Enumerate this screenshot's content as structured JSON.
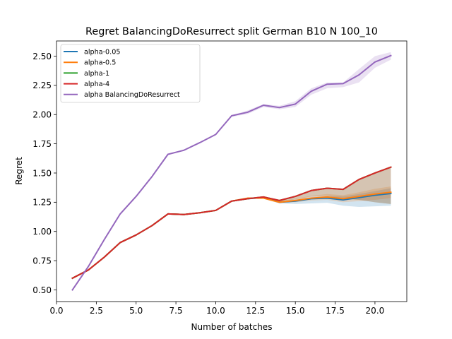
{
  "chart_data": {
    "type": "line",
    "title": "Regret BalancingDoResurrect split German B10 N 100_10",
    "xlabel": "Number of batches",
    "ylabel": "Regret",
    "xlim": [
      0.0,
      22.0
    ],
    "ylim": [
      0.4,
      2.63
    ],
    "xticks": [
      "0.0",
      "2.5",
      "5.0",
      "7.5",
      "10.0",
      "12.5",
      "15.0",
      "17.5",
      "20.0"
    ],
    "xtick_values": [
      0,
      2.5,
      5,
      7.5,
      10,
      12.5,
      15,
      17.5,
      20
    ],
    "yticks": [
      "0.50",
      "0.75",
      "1.00",
      "1.25",
      "1.50",
      "1.75",
      "2.00",
      "2.25",
      "2.50"
    ],
    "ytick_values": [
      0.5,
      0.75,
      1.0,
      1.25,
      1.5,
      1.75,
      2.0,
      2.25,
      2.5
    ],
    "grid": false,
    "legend_position": "top-left",
    "x": [
      1,
      2,
      3,
      4,
      5,
      6,
      7,
      8,
      9,
      10,
      11,
      12,
      13,
      14,
      15,
      16,
      17,
      18,
      19,
      20,
      21
    ],
    "series": [
      {
        "name": "alpha-0.05",
        "color": "#1f77b4",
        "values": [
          0.6,
          0.67,
          0.78,
          0.905,
          0.97,
          1.05,
          1.15,
          1.145,
          1.16,
          1.18,
          1.26,
          1.28,
          1.29,
          1.25,
          1.26,
          1.28,
          1.285,
          1.27,
          1.29,
          1.31,
          1.325
        ],
        "lower": [
          0.6,
          0.67,
          0.78,
          0.905,
          0.97,
          1.05,
          1.15,
          1.145,
          1.16,
          1.18,
          1.26,
          1.28,
          1.28,
          1.24,
          1.235,
          1.24,
          1.245,
          1.22,
          1.21,
          1.215,
          1.22
        ],
        "upper": [
          0.6,
          0.67,
          0.78,
          0.905,
          0.97,
          1.05,
          1.15,
          1.145,
          1.16,
          1.18,
          1.26,
          1.28,
          1.29,
          1.26,
          1.275,
          1.3,
          1.305,
          1.3,
          1.32,
          1.345,
          1.37
        ]
      },
      {
        "name": "alpha-0.5",
        "color": "#ff7f0e",
        "values": [
          0.6,
          0.67,
          0.78,
          0.905,
          0.97,
          1.05,
          1.15,
          1.145,
          1.16,
          1.18,
          1.26,
          1.285,
          1.285,
          1.25,
          1.265,
          1.285,
          1.295,
          1.28,
          1.3,
          1.32,
          1.335
        ],
        "lower": [
          0.6,
          0.67,
          0.78,
          0.905,
          0.97,
          1.05,
          1.15,
          1.145,
          1.16,
          1.18,
          1.26,
          1.28,
          1.28,
          1.245,
          1.25,
          1.265,
          1.27,
          1.25,
          1.26,
          1.27,
          1.285
        ],
        "upper": [
          0.6,
          0.67,
          0.78,
          0.905,
          0.97,
          1.05,
          1.15,
          1.145,
          1.16,
          1.18,
          1.26,
          1.29,
          1.295,
          1.26,
          1.28,
          1.305,
          1.32,
          1.31,
          1.335,
          1.365,
          1.385
        ]
      },
      {
        "name": "alpha-1",
        "color": "#2ca02c",
        "values": [
          0.6,
          0.67,
          0.78,
          0.905,
          0.97,
          1.05,
          1.15,
          1.145,
          1.16,
          1.18,
          1.26,
          1.28,
          1.295,
          1.265,
          1.3,
          1.35,
          1.37,
          1.36,
          1.445,
          1.5,
          1.55
        ],
        "lower": [
          0.6,
          0.67,
          0.78,
          0.905,
          0.97,
          1.05,
          1.15,
          1.145,
          1.16,
          1.18,
          1.26,
          1.28,
          1.29,
          1.255,
          1.275,
          1.3,
          1.305,
          1.28,
          1.27,
          1.25,
          1.235
        ],
        "upper": [
          0.6,
          0.67,
          0.78,
          0.905,
          0.97,
          1.05,
          1.15,
          1.145,
          1.16,
          1.18,
          1.26,
          1.28,
          1.3,
          1.27,
          1.305,
          1.35,
          1.37,
          1.36,
          1.445,
          1.5,
          1.55
        ]
      },
      {
        "name": "alpha-4",
        "color": "#d62728",
        "values": [
          0.6,
          0.67,
          0.78,
          0.905,
          0.97,
          1.05,
          1.15,
          1.145,
          1.16,
          1.18,
          1.26,
          1.28,
          1.295,
          1.265,
          1.3,
          1.35,
          1.37,
          1.36,
          1.445,
          1.5,
          1.55
        ],
        "lower": [
          0.6,
          0.67,
          0.78,
          0.905,
          0.97,
          1.05,
          1.15,
          1.145,
          1.16,
          1.18,
          1.26,
          1.28,
          1.29,
          1.255,
          1.275,
          1.3,
          1.305,
          1.28,
          1.27,
          1.25,
          1.235
        ],
        "upper": [
          0.6,
          0.67,
          0.78,
          0.905,
          0.97,
          1.05,
          1.15,
          1.145,
          1.16,
          1.18,
          1.26,
          1.28,
          1.3,
          1.27,
          1.305,
          1.35,
          1.37,
          1.36,
          1.445,
          1.5,
          1.55
        ]
      },
      {
        "name": "alpha BalancingDoResurrect",
        "color": "#9467bd",
        "values": [
          0.5,
          0.7,
          0.93,
          1.15,
          1.3,
          1.47,
          1.66,
          1.695,
          1.76,
          1.83,
          1.99,
          2.02,
          2.08,
          2.06,
          2.09,
          2.2,
          2.26,
          2.265,
          2.34,
          2.45,
          2.505
        ],
        "lower": [
          0.5,
          0.7,
          0.93,
          1.15,
          1.3,
          1.47,
          1.66,
          1.695,
          1.76,
          1.83,
          1.98,
          2.005,
          2.065,
          2.045,
          2.065,
          2.17,
          2.225,
          2.235,
          2.275,
          2.4,
          2.47
        ],
        "upper": [
          0.5,
          0.7,
          0.93,
          1.15,
          1.3,
          1.47,
          1.66,
          1.695,
          1.76,
          1.83,
          1.995,
          2.035,
          2.09,
          2.075,
          2.115,
          2.225,
          2.275,
          2.275,
          2.39,
          2.5,
          2.535
        ]
      }
    ]
  }
}
